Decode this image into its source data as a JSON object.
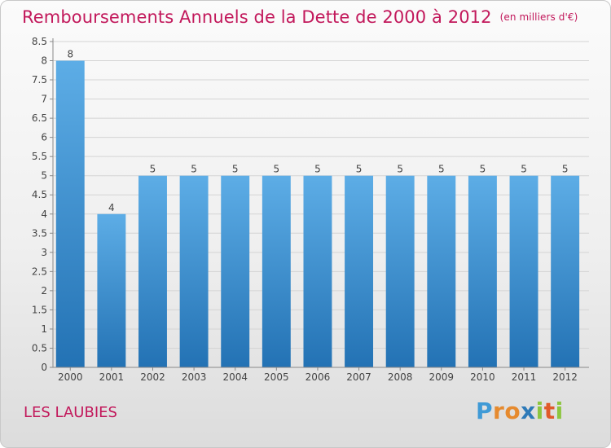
{
  "title": "Remboursements Annuels de la Dette de 2000 à 2012",
  "unit_note": "(en milliers d'€)",
  "commune": "LES LAUBIES",
  "logo": {
    "text": "Proxiti",
    "colors": [
      "#3f9ad6",
      "#e68a2e",
      "#e68a2e",
      "#2e7ab8",
      "#8cc63f",
      "#e05a2a",
      "#8cc63f"
    ]
  },
  "colors": {
    "title": "#c2185b",
    "bar_top": "#5dade6",
    "bar_bottom": "#2372b4"
  },
  "chart_data": {
    "type": "bar",
    "categories": [
      "2000",
      "2001",
      "2002",
      "2003",
      "2004",
      "2005",
      "2006",
      "2007",
      "2008",
      "2009",
      "2010",
      "2011",
      "2012"
    ],
    "values": [
      8,
      4,
      5,
      5,
      5,
      5,
      5,
      5,
      5,
      5,
      5,
      5,
      5
    ],
    "data_labels": [
      "8",
      "4",
      "5",
      "5",
      "5",
      "5",
      "5",
      "5",
      "5",
      "5",
      "5",
      "5",
      "5"
    ],
    "ylim": [
      0,
      8.5
    ],
    "yticks": [
      "0",
      "0.5",
      "1",
      "1.5",
      "2",
      "2.5",
      "3",
      "3.5",
      "4",
      "4.5",
      "5",
      "5.5",
      "6",
      "6.5",
      "7",
      "7.5",
      "8",
      "8.5"
    ],
    "grid": true
  }
}
